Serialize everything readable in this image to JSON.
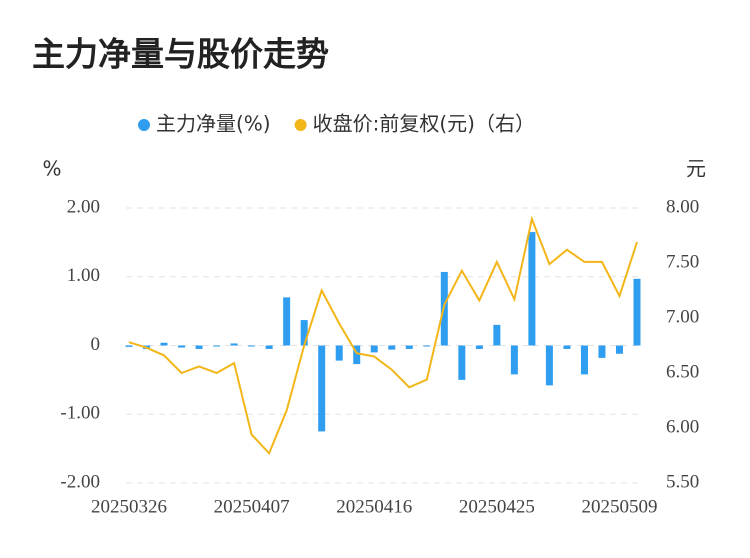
{
  "chart_data": {
    "type": "bar_line",
    "title": "主力净量与股价走势",
    "y_label": "%",
    "y2_label": "元",
    "categories": [
      "20250326",
      null,
      null,
      null,
      null,
      null,
      null,
      "20250407",
      null,
      null,
      null,
      null,
      null,
      null,
      "20250416",
      null,
      null,
      null,
      null,
      null,
      null,
      "20250425",
      null,
      null,
      null,
      null,
      null,
      null,
      "20250509",
      null
    ],
    "series": [
      {
        "name": "主力净量(%)",
        "type": "bar",
        "color": "#2f9ef0",
        "values": [
          -0.02,
          -0.05,
          0.04,
          -0.03,
          -0.05,
          -0.01,
          0.03,
          -0.01,
          -0.05,
          0.7,
          0.37,
          -1.25,
          -0.22,
          -0.27,
          -0.1,
          -0.06,
          -0.05,
          -0.01,
          1.07,
          -0.5,
          -0.05,
          0.3,
          -0.42,
          1.65,
          -0.58,
          -0.05,
          -0.42,
          -0.18,
          -0.12,
          0.97
        ]
      },
      {
        "name": "收盘价:前复权(元)（右）",
        "type": "line",
        "axis": "y2",
        "color": "#f3b619",
        "values": [
          6.78,
          6.73,
          6.66,
          6.5,
          6.56,
          6.5,
          6.59,
          5.94,
          5.77,
          6.16,
          6.75,
          7.25,
          6.95,
          6.68,
          6.65,
          6.53,
          6.37,
          6.44,
          7.12,
          7.43,
          7.16,
          7.51,
          7.17,
          7.9,
          7.49,
          7.62,
          7.51,
          7.51,
          7.2,
          7.69
        ]
      }
    ],
    "ylim": [
      -2,
      2
    ],
    "yticks": [
      {
        "value": 2,
        "label": "2.00"
      },
      {
        "value": 1,
        "label": "1.00"
      },
      0,
      {
        "value": -1,
        "label": "-1.00"
      },
      {
        "value": -2,
        "label": "-2.00"
      }
    ],
    "y2lim": [
      5.5,
      8
    ],
    "y2ticks": [
      {
        "value": 8,
        "label": "8.00"
      },
      {
        "value": 7.5,
        "label": "7.50"
      },
      {
        "value": 7,
        "label": "7.00"
      },
      {
        "value": 6.5,
        "label": "6.50"
      },
      {
        "value": 6,
        "label": "6.00"
      },
      {
        "value": 5.5,
        "label": "5.50"
      }
    ],
    "grid": true
  }
}
